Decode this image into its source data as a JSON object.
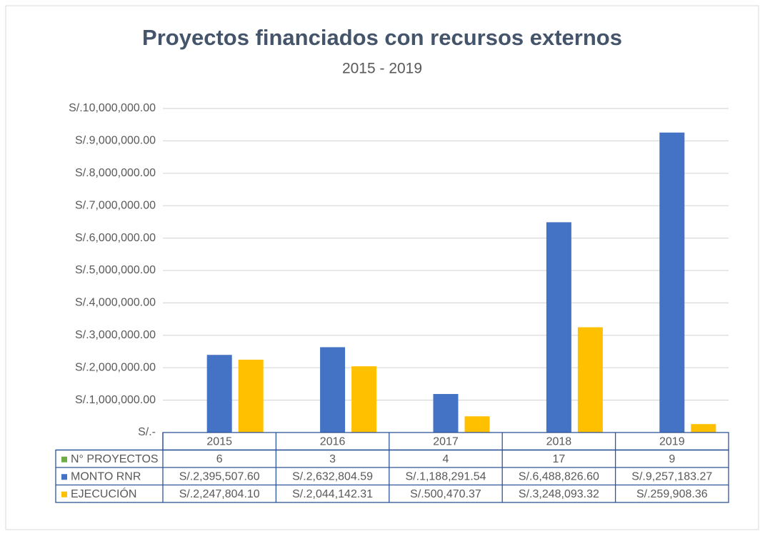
{
  "chart_data": {
    "type": "bar",
    "title": "Proyectos financiados con recursos externos",
    "subtitle": "2015 - 2019",
    "categories": [
      "2015",
      "2016",
      "2017",
      "2018",
      "2019"
    ],
    "series": [
      {
        "name": "N° PROYECTOS",
        "color": "#70ad47",
        "values": [
          6,
          3,
          4,
          17,
          9
        ]
      },
      {
        "name": "MONTO RNR",
        "color": "#4472c4",
        "values": [
          2395507.6,
          2632804.59,
          1188291.54,
          6488826.6,
          9257183.27
        ],
        "value_labels": [
          "S/.2,395,507.60",
          "S/.2,632,804.59",
          "S/.1,188,291.54",
          "S/.6,488,826.60",
          "S/.9,257,183.27"
        ]
      },
      {
        "name": "EJECUCIÓN",
        "color": "#ffc000",
        "values": [
          2247804.1,
          2044142.31,
          500470.37,
          3248093.32,
          259908.36
        ],
        "value_labels": [
          "S/.2,247,804.10",
          "S/.2,044,142.31",
          "S/.500,470.37",
          "S/.3,248,093.32",
          "S/.259,908.36"
        ]
      }
    ],
    "ylim": [
      0,
      10000000
    ],
    "yticks": [
      {
        "value": 0,
        "label": "S/.-"
      },
      {
        "value": 1000000,
        "label": "S/.1,000,000.00"
      },
      {
        "value": 2000000,
        "label": "S/.2,000,000.00"
      },
      {
        "value": 3000000,
        "label": "S/.3,000,000.00"
      },
      {
        "value": 4000000,
        "label": "S/.4,000,000.00"
      },
      {
        "value": 5000000,
        "label": "S/.5,000,000.00"
      },
      {
        "value": 6000000,
        "label": "S/.6,000,000.00"
      },
      {
        "value": 7000000,
        "label": "S/.7,000,000.00"
      },
      {
        "value": 8000000,
        "label": "S/.8,000,000.00"
      },
      {
        "value": 9000000,
        "label": "S/.9,000,000.00"
      },
      {
        "value": 10000000,
        "label": "S/.10,000,000.00"
      }
    ],
    "grid": true
  }
}
